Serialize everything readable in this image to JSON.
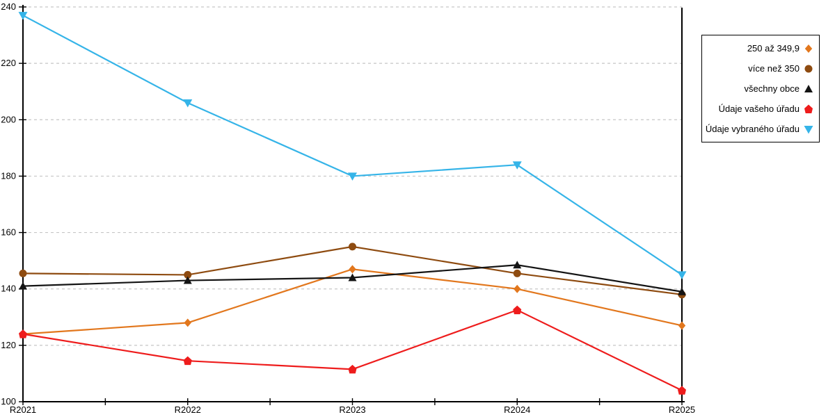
{
  "chart_data": {
    "type": "line",
    "title": "",
    "xlabel": "",
    "ylabel": "",
    "categories": [
      "R2021",
      "R2022",
      "R2023",
      "R2024",
      "R2025"
    ],
    "series": [
      {
        "name": "250 až 349,9",
        "marker": "diamond",
        "color": "#E2771D",
        "values": [
          124,
          128,
          147,
          140,
          127
        ]
      },
      {
        "name": "více než 350",
        "marker": "circle",
        "color": "#8E4B10",
        "values": [
          145.5,
          145,
          155,
          145.5,
          138
        ]
      },
      {
        "name": "všechny obce",
        "marker": "triangle-up",
        "color": "#141414",
        "values": [
          141,
          143,
          144,
          148.5,
          139
        ]
      },
      {
        "name": "Údaje vašeho úřadu",
        "marker": "pentagon",
        "color": "#EE1C1C",
        "values": [
          124,
          114.5,
          111.5,
          132.5,
          104
        ]
      },
      {
        "name": "Údaje vybraného úřadu",
        "marker": "triangle-down",
        "color": "#35B4E8",
        "values": [
          237,
          206,
          180,
          184,
          145
        ]
      }
    ],
    "ylim": [
      100,
      240
    ],
    "ytick_step": 20,
    "grid": "horizontal-dashed",
    "legend_position": "top-right"
  },
  "axes": {
    "y_ticks": [
      "240",
      "220",
      "200",
      "180",
      "160",
      "140",
      "120",
      "100"
    ],
    "x_ticks": [
      "R2021",
      "R2022",
      "R2023",
      "R2024",
      "R2025"
    ]
  },
  "style_colors": {
    "gridline": "#C6C6C6",
    "axis": "#000000",
    "background": "#FFFFFF"
  }
}
